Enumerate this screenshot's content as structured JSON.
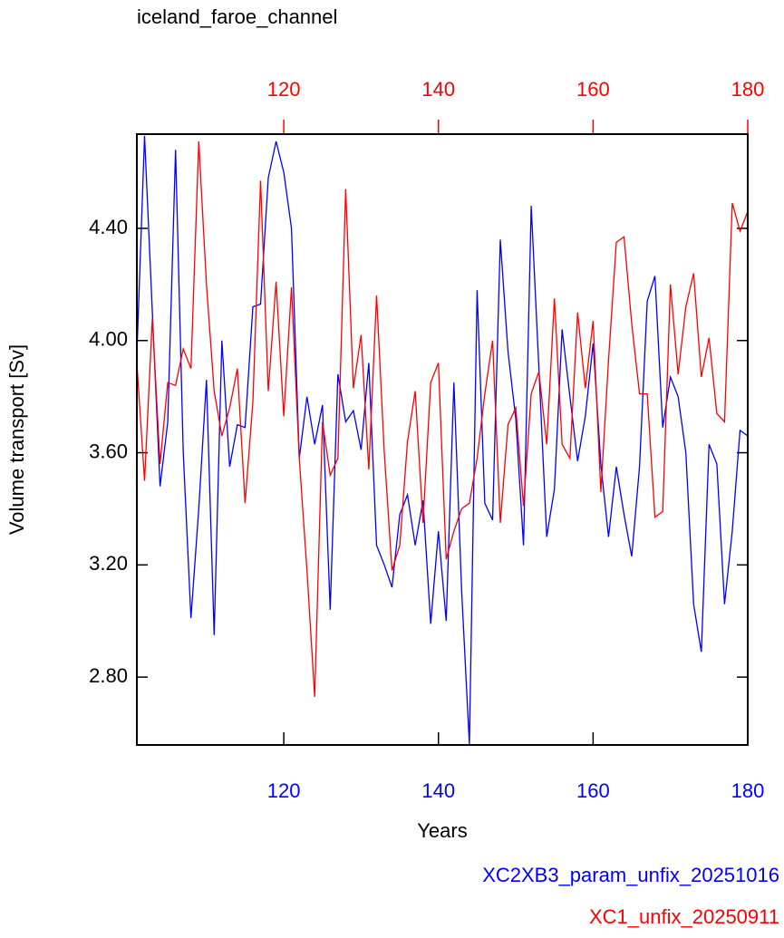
{
  "chart_data": {
    "type": "line",
    "title": "iceland_faroe_channel",
    "xlabel": "Years",
    "ylabel": "Volume transport [Sv]",
    "x": [
      101,
      102,
      103,
      104,
      105,
      106,
      107,
      108,
      109,
      110,
      111,
      112,
      113,
      114,
      115,
      116,
      117,
      118,
      119,
      120,
      121,
      122,
      123,
      124,
      125,
      126,
      127,
      128,
      129,
      130,
      131,
      132,
      133,
      134,
      135,
      136,
      137,
      138,
      139,
      140,
      141,
      142,
      143,
      144,
      145,
      146,
      147,
      148,
      149,
      150,
      151,
      152,
      153,
      154,
      155,
      156,
      157,
      158,
      159,
      160,
      161,
      162,
      163,
      164,
      165,
      166,
      167,
      168,
      169,
      170,
      171,
      172,
      173,
      174,
      175,
      176,
      177,
      178,
      179,
      180
    ],
    "xlim": [
      101,
      180
    ],
    "xticks": [
      120,
      140,
      160,
      180
    ],
    "x2lim": [
      101,
      180
    ],
    "x2ticks": [
      120,
      140,
      160,
      180
    ],
    "ylim": [
      2.558,
      4.736
    ],
    "yticks": [
      {
        "value": 2.8,
        "label": "2.80"
      },
      {
        "value": 3.2,
        "label": "3.20"
      },
      {
        "value": 3.6,
        "label": "3.60"
      },
      {
        "value": 4.0,
        "label": "4.00"
      },
      {
        "value": 4.4,
        "label": "4.40"
      }
    ],
    "series": [
      {
        "name": "XC2XB3_param_unfix_20251016",
        "color": "#0000ff",
        "axis": "x",
        "values": [
          3.95,
          4.73,
          4.1,
          3.48,
          3.71,
          4.68,
          3.6,
          3.01,
          3.4,
          3.86,
          2.95,
          4.0,
          3.55,
          3.7,
          3.69,
          4.12,
          4.13,
          4.58,
          4.71,
          4.6,
          4.4,
          3.58,
          3.8,
          3.63,
          3.77,
          3.04,
          3.88,
          3.71,
          3.75,
          3.61,
          3.92,
          3.27,
          3.2,
          3.12,
          3.38,
          3.45,
          3.27,
          3.43,
          2.99,
          3.32,
          3.0,
          3.85,
          3.11,
          2.56,
          4.18,
          3.42,
          3.36,
          4.36,
          3.96,
          3.72,
          3.27,
          4.48,
          3.9,
          3.3,
          3.47,
          4.04,
          3.8,
          3.57,
          3.73,
          3.99,
          3.56,
          3.3,
          3.55,
          3.38,
          3.23,
          3.55,
          4.14,
          4.23,
          3.69,
          3.87,
          3.8,
          3.6,
          3.06,
          2.89,
          3.63,
          3.56,
          3.06,
          3.32,
          3.68,
          3.66
        ]
      },
      {
        "name": "XC1_unfix_20250911",
        "color": "#ff0000",
        "axis": "x2",
        "values": [
          3.92,
          3.5,
          4.08,
          3.56,
          3.85,
          3.84,
          3.97,
          3.9,
          4.71,
          4.2,
          3.82,
          3.66,
          3.76,
          3.9,
          3.42,
          3.78,
          4.57,
          3.82,
          4.21,
          3.73,
          4.19,
          3.58,
          3.18,
          2.73,
          3.71,
          3.52,
          3.58,
          4.54,
          3.83,
          4.02,
          3.54,
          4.16,
          3.6,
          3.18,
          3.27,
          3.64,
          3.82,
          3.35,
          3.85,
          3.92,
          3.22,
          3.32,
          3.4,
          3.42,
          3.58,
          3.81,
          4.0,
          3.35,
          3.7,
          3.76,
          3.41,
          3.81,
          3.89,
          3.63,
          4.15,
          3.63,
          3.58,
          4.1,
          3.83,
          4.07,
          3.46,
          3.93,
          4.35,
          4.37,
          4.06,
          3.81,
          3.81,
          3.37,
          3.39,
          4.2,
          3.88,
          4.12,
          4.24,
          3.87,
          4.01,
          3.74,
          3.71,
          4.49,
          4.39,
          4.46
        ]
      }
    ]
  }
}
